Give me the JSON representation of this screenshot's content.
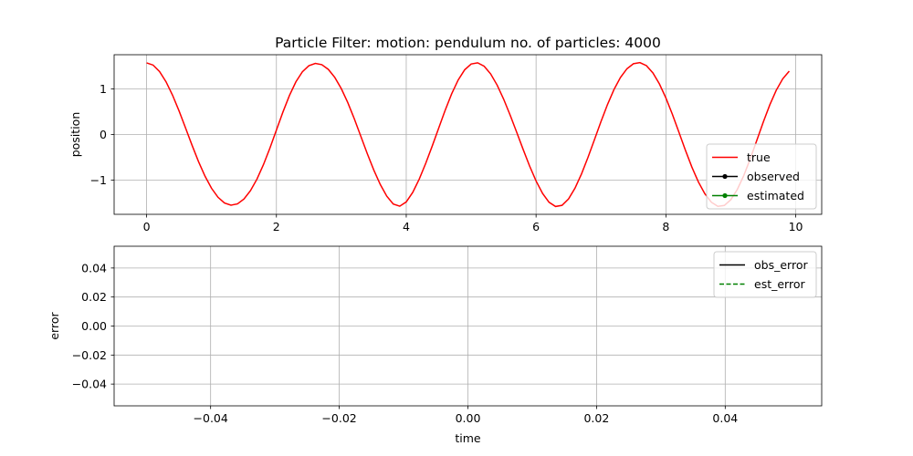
{
  "chart_data": [
    {
      "type": "line",
      "title": "Particle Filter: motion: pendulum no. of particles: 4000",
      "xlabel": "",
      "ylabel": "position",
      "xlim": [
        -0.5,
        10.4
      ],
      "ylim": [
        -1.75,
        1.75
      ],
      "xticks": [
        0,
        2,
        4,
        6,
        8,
        10
      ],
      "xtick_labels": [
        "0",
        "2",
        "4",
        "6",
        "8",
        "10"
      ],
      "yticks": [
        -1,
        0,
        1
      ],
      "ytick_labels": [
        "−1",
        "0",
        "1"
      ],
      "grid": true,
      "legend_position": "lower-right",
      "series": [
        {
          "name": "true",
          "color": "#ff0000",
          "style": "solid",
          "marker": "none",
          "model": "pendulum",
          "x": [
            0,
            0.1,
            0.2,
            0.3,
            0.4,
            0.5,
            0.6,
            0.7,
            0.8,
            0.9,
            1.0,
            1.1,
            1.2,
            1.3,
            1.4,
            1.5,
            1.6,
            1.7,
            1.8,
            1.9,
            2.0,
            2.1,
            2.2,
            2.3,
            2.4,
            2.5,
            2.6,
            2.7,
            2.8,
            2.9,
            3.0,
            3.1,
            3.2,
            3.3,
            3.4,
            3.5,
            3.6,
            3.7,
            3.8,
            3.9,
            4.0,
            4.1,
            4.2,
            4.3,
            4.4,
            4.5,
            4.6,
            4.7,
            4.8,
            4.9,
            5.0,
            5.1,
            5.2,
            5.3,
            5.4,
            5.5,
            5.6,
            5.7,
            5.8,
            5.9,
            6.0,
            6.1,
            6.2,
            6.3,
            6.4,
            6.5,
            6.6,
            6.7,
            6.8,
            6.9,
            7.0,
            7.1,
            7.2,
            7.3,
            7.4,
            7.5,
            7.6,
            7.7,
            7.8,
            7.9,
            8.0,
            8.1,
            8.2,
            8.3,
            8.4,
            8.5,
            8.6,
            8.7,
            8.8,
            8.9,
            9.0,
            9.1,
            9.2,
            9.3,
            9.4,
            9.5,
            9.6,
            9.7,
            9.8,
            9.9
          ],
          "y": [
            1.571,
            1.523,
            1.381,
            1.156,
            0.862,
            0.519,
            0.145,
            -0.234,
            -0.594,
            -0.913,
            -1.178,
            -1.376,
            -1.501,
            -1.55,
            -1.521,
            -1.414,
            -1.232,
            -0.979,
            -0.662,
            -0.297,
            0.097,
            0.491,
            0.854,
            1.155,
            1.376,
            1.509,
            1.56,
            1.532,
            1.428,
            1.251,
            1.005,
            0.698,
            0.345,
            -0.037,
            -0.419,
            -0.779,
            -1.096,
            -1.352,
            -1.525,
            -1.572,
            -1.478,
            -1.269,
            -0.978,
            -0.633,
            -0.254,
            0.141,
            0.533,
            0.893,
            1.196,
            1.419,
            1.547,
            1.573,
            1.498,
            1.33,
            1.084,
            0.777,
            0.428,
            0.055,
            -0.324,
            -0.69,
            -1.019,
            -1.292,
            -1.486,
            -1.578,
            -1.553,
            -1.413,
            -1.176,
            -0.863,
            -0.5,
            -0.11,
            0.284,
            0.657,
            0.986,
            1.252,
            1.443,
            1.553,
            1.577,
            1.51,
            1.351,
            1.11,
            0.801,
            0.442,
            0.053,
            -0.342,
            -0.714,
            -1.039,
            -1.3,
            -1.484,
            -1.574,
            -1.555,
            -1.429,
            -1.205,
            -0.898,
            -0.53,
            -0.13,
            0.273,
            0.649,
            0.972,
            1.222,
            1.39
          ]
        },
        {
          "name": "observed",
          "color": "#000000",
          "style": "solid",
          "marker": "circle",
          "x": [],
          "y": []
        },
        {
          "name": "estimated",
          "color": "#008000",
          "style": "solid",
          "marker": "circle",
          "x": [],
          "y": []
        }
      ]
    },
    {
      "type": "line",
      "title": "",
      "xlabel": "time",
      "ylabel": "error",
      "xlim": [
        -0.055,
        0.055
      ],
      "ylim": [
        -0.055,
        0.055
      ],
      "xticks": [
        -0.04,
        -0.02,
        0.0,
        0.02,
        0.04
      ],
      "xtick_labels": [
        "−0.04",
        "−0.02",
        "0.00",
        "0.02",
        "0.04"
      ],
      "yticks": [
        -0.04,
        -0.02,
        0.0,
        0.02,
        0.04
      ],
      "ytick_labels": [
        "−0.04",
        "−0.02",
        "0.00",
        "0.02",
        "0.04"
      ],
      "grid": true,
      "legend_position": "top-right",
      "series": [
        {
          "name": "obs_error",
          "color": "#000000",
          "style": "solid",
          "x": [],
          "y": []
        },
        {
          "name": "est_error",
          "color": "#008000",
          "style": "dashed",
          "x": [],
          "y": []
        }
      ]
    }
  ]
}
